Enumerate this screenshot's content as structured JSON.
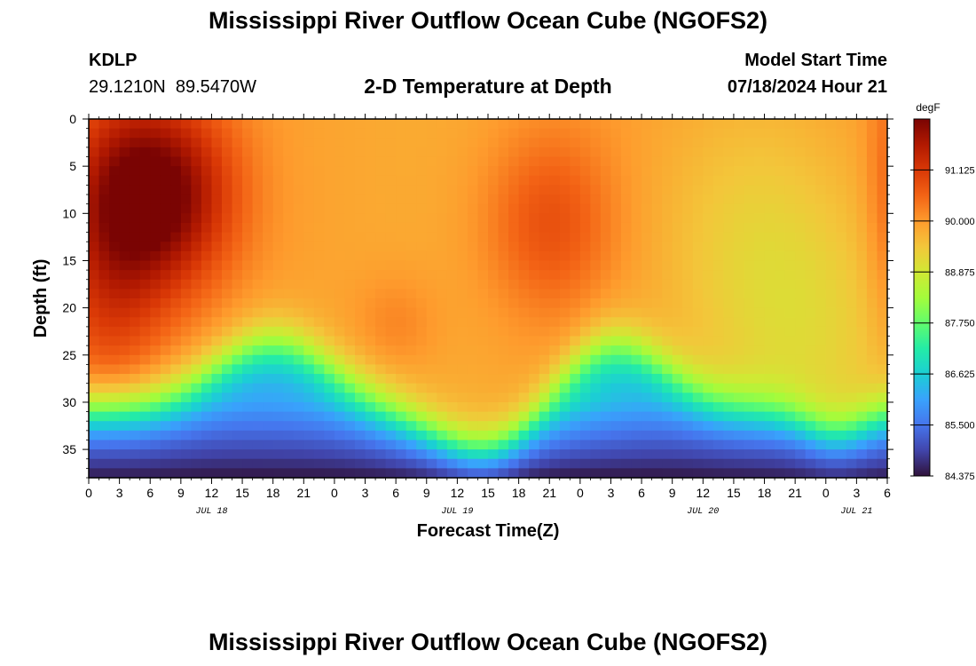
{
  "title": "Mississippi River Outflow Ocean Cube (NGOFS2)",
  "footer_title": "Mississippi River Outflow Ocean Cube (NGOFS2)",
  "station": {
    "id": "KDLP",
    "coords": "29.1210N  89.5470W"
  },
  "subtitle": "2-D Temperature at Depth",
  "model_start": {
    "label": "Model Start Time",
    "value": "07/18/2024 Hour 21"
  },
  "chart_data": {
    "type": "heatmap",
    "xlabel": "Forecast Time(Z)",
    "ylabel": "Depth (ft)",
    "x_unit": "hours since 07/18/2024 00Z",
    "xlim": [
      0,
      78
    ],
    "ylim": [
      0,
      38
    ],
    "y_inverted": true,
    "x_ticks": [
      0,
      3,
      6,
      9,
      12,
      15,
      18,
      21,
      24,
      27,
      30,
      33,
      36,
      39,
      42,
      45,
      48,
      51,
      54,
      57,
      60,
      63,
      66,
      69,
      72,
      75,
      78
    ],
    "x_tick_labels": [
      "0",
      "3",
      "6",
      "9",
      "12",
      "15",
      "18",
      "21",
      "0",
      "3",
      "6",
      "9",
      "12",
      "15",
      "18",
      "21",
      "0",
      "3",
      "6",
      "9",
      "12",
      "15",
      "18",
      "21",
      "0",
      "3",
      "6"
    ],
    "y_ticks": [
      0,
      5,
      10,
      15,
      20,
      25,
      30,
      35
    ],
    "y_tick_labels": [
      "0",
      "5",
      "10",
      "15",
      "20",
      "25",
      "30",
      "35"
    ],
    "date_labels": [
      {
        "text": "JUL 18",
        "x": 12
      },
      {
        "text": "JUL 19",
        "x": 36
      },
      {
        "text": "JUL 20",
        "x": 60
      },
      {
        "text": "JUL 21",
        "x": 75
      }
    ],
    "colorbar": {
      "unit": "degF",
      "min": 84.375,
      "max": 92.25,
      "ticks": [
        "84.375",
        "85.500",
        "86.625",
        "87.750",
        "88.875",
        "90.000",
        "91.125"
      ],
      "colormap": [
        "#30123b",
        "#4145ab",
        "#4675ed",
        "#39a2fc",
        "#1bcfd4",
        "#24eca6",
        "#61fc6c",
        "#a4fc3b",
        "#d1e834",
        "#f3c63a",
        "#fe9b2d",
        "#f36315",
        "#d93806",
        "#b11901",
        "#7a0403"
      ]
    },
    "temperature_profile_description": "Warm surface layer (90-92.2 degF) over a cool bottom layer (84.4-88 degF); thermocline rises to ~23 ft near hours 18 and 51 and dips to ~35 ft near hours 39 and 73",
    "sample_profiles": [
      {
        "hour": 0,
        "surface_degF": 91.4,
        "bottom_layer_top_ft": 28
      },
      {
        "hour": 8,
        "surface_degF": 92.2,
        "bottom_layer_top_ft": 28
      },
      {
        "hour": 18,
        "surface_degF": 90.3,
        "bottom_layer_top_ft": 23
      },
      {
        "hour": 39,
        "surface_degF": 90.2,
        "bottom_layer_top_ft": 34
      },
      {
        "hour": 45,
        "surface_degF": 90.7,
        "bottom_layer_top_ft": 30
      },
      {
        "hour": 51,
        "surface_degF": 89.9,
        "bottom_layer_top_ft": 24
      },
      {
        "hour": 66,
        "surface_degF": 88.9,
        "bottom_layer_top_ft": 30
      },
      {
        "hour": 78,
        "surface_degF": 90.0,
        "bottom_layer_top_ft": 30
      }
    ]
  }
}
